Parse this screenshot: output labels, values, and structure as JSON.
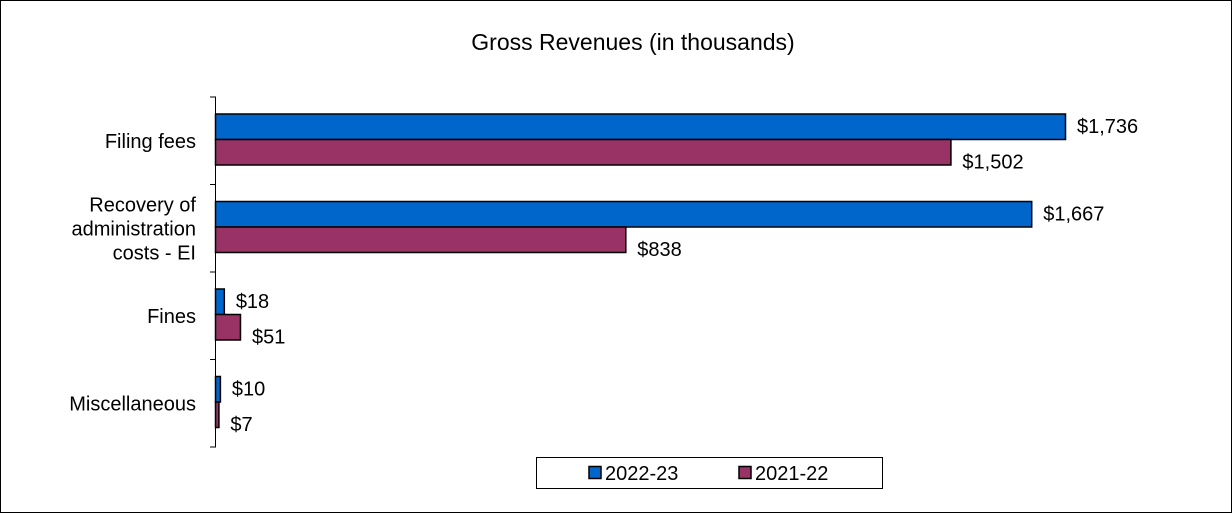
{
  "chart_data": {
    "type": "bar",
    "orientation": "horizontal",
    "title": "Gross Revenues (in thousands)",
    "categories": [
      [
        "Filing fees"
      ],
      [
        "Recovery of",
        "administration",
        "costs - EI"
      ],
      [
        "Fines"
      ],
      [
        "Miscellaneous"
      ]
    ],
    "series": [
      {
        "name": "2022-23",
        "color": "#0066CC",
        "values": [
          1736,
          1667,
          18,
          10
        ],
        "labels": [
          "$1,736",
          "$1,667",
          "$18",
          "$10"
        ]
      },
      {
        "name": "2021-22",
        "color": "#993366",
        "values": [
          1502,
          838,
          51,
          7
        ],
        "labels": [
          "$1,502",
          "$838",
          "$51",
          "$7"
        ]
      }
    ],
    "xlim": [
      0,
      1736
    ],
    "grid": false,
    "legend_placement": "bottom"
  }
}
